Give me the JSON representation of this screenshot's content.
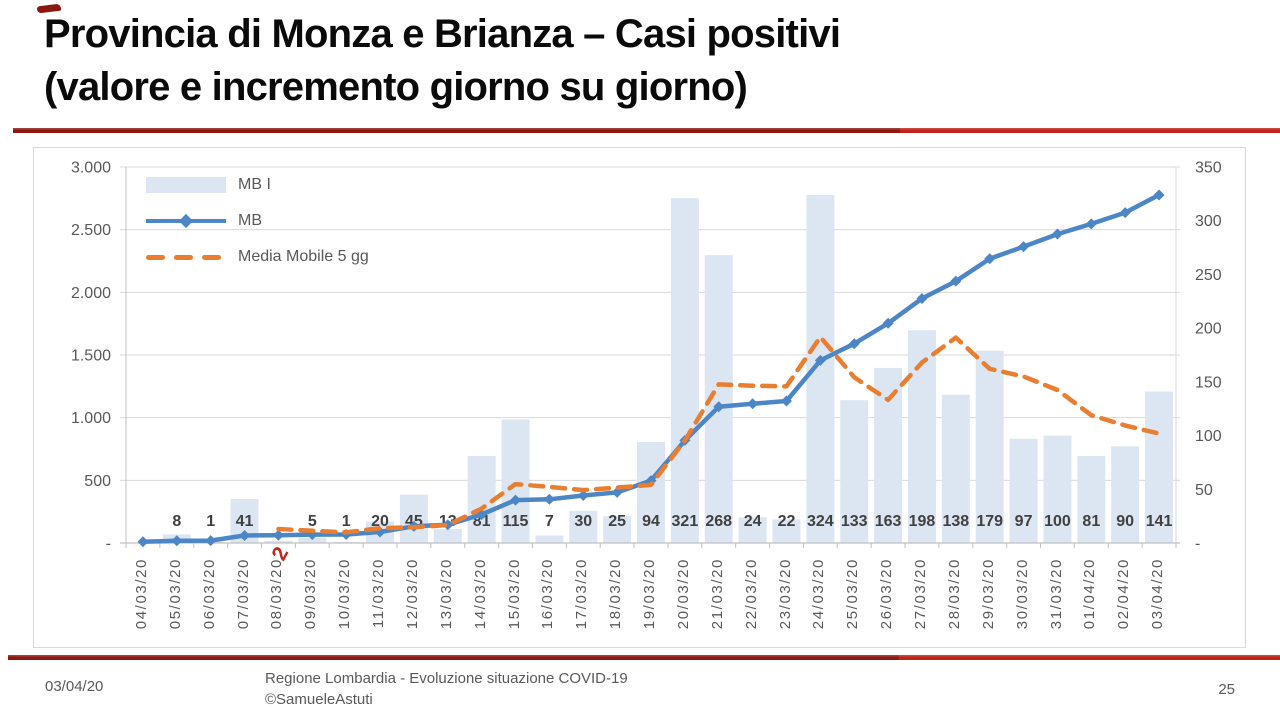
{
  "slide": {
    "title_line1": "Provincia di Monza e Brianza – Casi positivi",
    "title_line2": "(valore e incremento giorno su giorno)",
    "footer": {
      "date": "03/04/20",
      "source_line1": "Regione Lombardia - Evoluzione situazione COVID-19",
      "source_line2": "©SamueleAstuti",
      "page_number": "25"
    },
    "accent_colors": {
      "rule_dark_red": "#8e1712",
      "rule_bright_red": "#c0231b"
    }
  },
  "chart_data": {
    "type": "bar",
    "subtype": "combo-bar-and-lines",
    "grid": true,
    "legend_position": "top-left-inside",
    "categories": [
      "04/03/20",
      "05/03/20",
      "06/03/20",
      "07/03/20",
      "08/03/20",
      "09/03/20",
      "10/03/20",
      "11/03/20",
      "12/03/20",
      "13/03/20",
      "14/03/20",
      "15/03/20",
      "16/03/20",
      "17/03/20",
      "18/03/20",
      "19/03/20",
      "20/03/20",
      "21/03/20",
      "22/03/20",
      "23/03/20",
      "24/03/20",
      "25/03/20",
      "26/03/20",
      "27/03/20",
      "28/03/20",
      "29/03/20",
      "30/03/20",
      "31/03/20",
      "01/04/20",
      "02/04/20",
      "03/04/20"
    ],
    "series": [
      {
        "name": "MB I",
        "type": "bar",
        "axis": "right",
        "color": "#dce6f2",
        "values": [
          null,
          8,
          1,
          41,
          2,
          5,
          1,
          20,
          45,
          13,
          81,
          115,
          7,
          30,
          25,
          94,
          321,
          268,
          24,
          22,
          324,
          133,
          163,
          198,
          138,
          179,
          97,
          100,
          81,
          90,
          141
        ]
      },
      {
        "name": "MB",
        "type": "line",
        "marker": "diamond",
        "axis": "left",
        "color": "#4d86c6",
        "values": [
          10,
          18,
          19,
          60,
          62,
          67,
          68,
          88,
          133,
          146,
          227,
          342,
          349,
          379,
          404,
          498,
          819,
          1087,
          1111,
          1133,
          1457,
          1590,
          1753,
          1951,
          2089,
          2268,
          2365,
          2465,
          2546,
          2636,
          2777
        ]
      },
      {
        "name": "Media Mobile 5 gg",
        "type": "line",
        "dashed": true,
        "axis": "right",
        "color": "#e97e30",
        "values": [
          null,
          null,
          null,
          null,
          13,
          11.4,
          10,
          13.8,
          14.6,
          16.8,
          32,
          54.8,
          52.2,
          49.2,
          51.6,
          54.2,
          95.4,
          147.6,
          146.4,
          145.8,
          191.8,
          154.2,
          133.2,
          168,
          191.2,
          162.2,
          155,
          142.4,
          119,
          109.4,
          101.8
        ]
      }
    ],
    "bar_labels": [
      "",
      "8",
      "1",
      "41",
      "",
      "5",
      "1",
      "20",
      "45",
      "13",
      "81",
      "115",
      "7",
      "30",
      "25",
      "94",
      "321",
      "268",
      "24",
      "22",
      "324",
      "133",
      "163",
      "198",
      "138",
      "179",
      "97",
      "100",
      "81",
      "90",
      "141"
    ],
    "annotations": [
      {
        "text": "2",
        "color": "#c2271d",
        "target_category": "08/03/20"
      }
    ],
    "left_axis": {
      "min": 0,
      "max": 3000,
      "tick_values": [
        0,
        500,
        1000,
        1500,
        2000,
        2500,
        3000
      ],
      "tick_labels": [
        "-",
        "500",
        "1.000",
        "1.500",
        "2.000",
        "2.500",
        "3.000"
      ]
    },
    "right_axis": {
      "min": 0,
      "max": 350,
      "tick_values": [
        0,
        50,
        100,
        150,
        200,
        250,
        300,
        350
      ],
      "tick_labels": [
        "-",
        "50",
        "100",
        "150",
        "200",
        "250",
        "300",
        "350"
      ]
    },
    "axis_text_color": "#595959",
    "label_text_color": "#404040",
    "gridline_color": "#dadada",
    "axis_line_color": "#c0c0c0"
  }
}
